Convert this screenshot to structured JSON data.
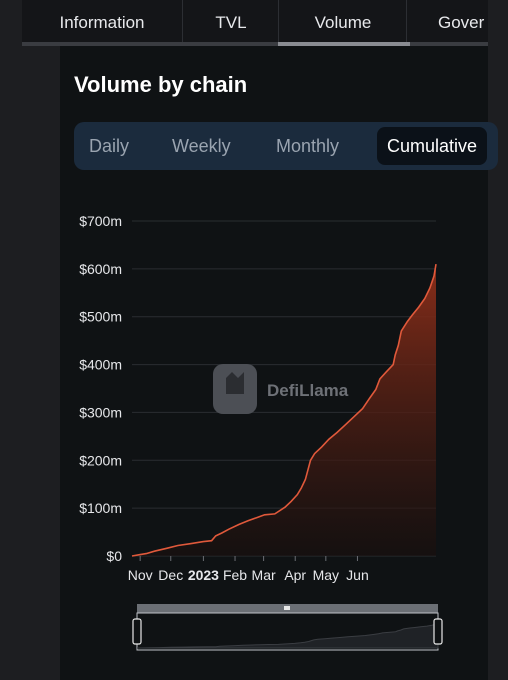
{
  "tabs": [
    {
      "label": "Information"
    },
    {
      "label": "TVL"
    },
    {
      "label": "Volume",
      "active": true
    },
    {
      "label": "Gover"
    }
  ],
  "title": "Volume by chain",
  "period_options": [
    {
      "label": "Daily"
    },
    {
      "label": "Weekly"
    },
    {
      "label": "Monthly"
    },
    {
      "label": "Cumulative",
      "active": true
    }
  ],
  "watermark": "DefiLlama",
  "colors": {
    "line": "#e0593b",
    "fill_top": "#8f2f1a",
    "background": "#0f1214",
    "grid": "#2a2d31"
  },
  "chart_data": {
    "type": "area",
    "title": "",
    "xlabel": "",
    "ylabel": "",
    "y_ticks": [
      "$0",
      "$100m",
      "$200m",
      "$300m",
      "$400m",
      "$500m",
      "$600m",
      "$700m"
    ],
    "x_ticks": [
      "Nov",
      "Dec",
      "2023",
      "Feb",
      "Mar",
      "Apr",
      "May",
      "Jun"
    ],
    "x_tick_emphasis": "2023",
    "ylim": [
      0,
      700
    ],
    "y_unit": "millions USD",
    "series": [
      {
        "values": [
          [
            0,
            0
          ],
          [
            8,
            3
          ],
          [
            14,
            5
          ],
          [
            22,
            10
          ],
          [
            34,
            16
          ],
          [
            45,
            22
          ],
          [
            58,
            26
          ],
          [
            70,
            30
          ],
          [
            78,
            32
          ],
          [
            82,
            42
          ],
          [
            88,
            48
          ],
          [
            95,
            56
          ],
          [
            105,
            66
          ],
          [
            114,
            74
          ],
          [
            122,
            80
          ],
          [
            130,
            86
          ],
          [
            140,
            88
          ],
          [
            150,
            102
          ],
          [
            156,
            114
          ],
          [
            162,
            128
          ],
          [
            166,
            142
          ],
          [
            170,
            160
          ],
          [
            175,
            200
          ],
          [
            179,
            214
          ],
          [
            186,
            228
          ],
          [
            193,
            244
          ],
          [
            201,
            258
          ],
          [
            209,
            274
          ],
          [
            218,
            292
          ],
          [
            226,
            308
          ],
          [
            233,
            330
          ],
          [
            239,
            348
          ],
          [
            243,
            370
          ],
          [
            249,
            384
          ],
          [
            256,
            400
          ],
          [
            258,
            420
          ],
          [
            261,
            440
          ],
          [
            264,
            470
          ],
          [
            270,
            490
          ],
          [
            275,
            504
          ],
          [
            281,
            520
          ],
          [
            287,
            538
          ],
          [
            292,
            560
          ],
          [
            296,
            585
          ],
          [
            298,
            610
          ]
        ]
      }
    ],
    "x_domain_days": [
      0,
      298
    ],
    "x_tick_days": [
      8,
      38,
      70,
      101,
      129,
      160,
      190,
      221
    ],
    "grid": "horizontal",
    "legend": "none"
  }
}
